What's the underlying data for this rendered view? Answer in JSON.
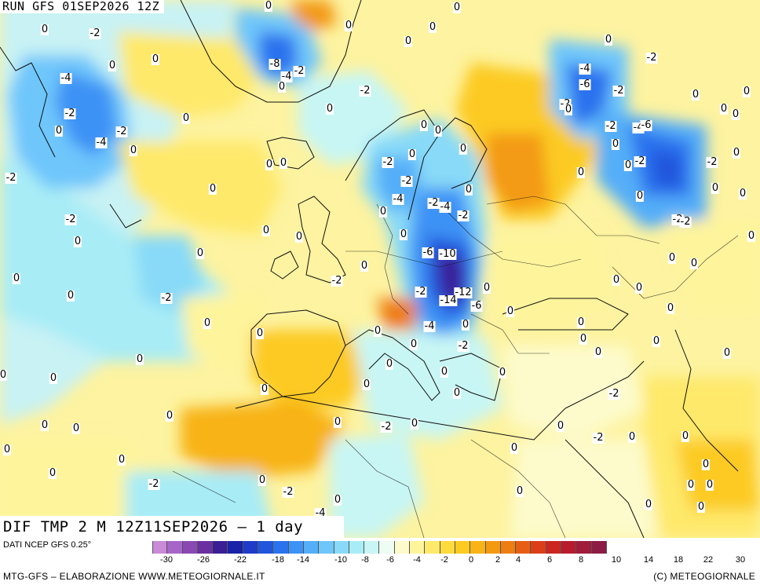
{
  "header": {
    "run": "RUN GFS 01SEP2026 12Z"
  },
  "title": "DIF TMP 2 M 12Z11SEP2026 – 1 day",
  "source": "DATI NCEP GFS 0.25°",
  "credit_left": "MTG-GFS – ELABORAZIONE WWW.METEOGIORNALE.IT",
  "credit_right": "(C) METEOGIORNALE",
  "legend": {
    "colors": [
      "#c98ad8",
      "#a865c8",
      "#8a48b4",
      "#6a2fa0",
      "#3a1e96",
      "#1a22a8",
      "#1e3cc8",
      "#2055dc",
      "#2a72ee",
      "#3c92f5",
      "#55aef8",
      "#6ec6fb",
      "#88daf8",
      "#a8ecf6",
      "#c8f6f4",
      "#eefcf4",
      "#fdfbcc",
      "#fef49c",
      "#fee96a",
      "#fedb3c",
      "#fcca20",
      "#f8b316",
      "#f39a12",
      "#ee7e12",
      "#e65e14",
      "#dc3e18",
      "#cc2620",
      "#b81c2c",
      "#a01c3a",
      "#8c1c44"
    ],
    "ticks": [
      "-30",
      "-26",
      "-22",
      "-18",
      "-14",
      "-10",
      "-8",
      "-6",
      "-4",
      "-2",
      "0",
      "2",
      "4",
      "6",
      "8",
      "10",
      "14",
      "18",
      "22",
      "30"
    ]
  },
  "map_labels": [
    [
      "0",
      57,
      38
    ],
    [
      "-2",
      121,
      43
    ],
    [
      "-4",
      84,
      100
    ],
    [
      "0",
      143,
      84
    ],
    [
      "0",
      198,
      76
    ],
    [
      "-2",
      89,
      145
    ],
    [
      "0",
      75,
      167
    ],
    [
      "-2",
      155,
      168
    ],
    [
      "-4",
      129,
      182
    ],
    [
      "0",
      170,
      192
    ],
    [
      "0",
      237,
      151
    ],
    [
      "0",
      342,
      8
    ],
    [
      "0",
      444,
      33
    ],
    [
      "-8",
      350,
      82
    ],
    [
      "-2",
      381,
      91
    ],
    [
      "-4",
      365,
      98
    ],
    [
      "0",
      359,
      111
    ],
    [
      "-2",
      465,
      116
    ],
    [
      "0",
      420,
      139
    ],
    [
      "0",
      520,
      53
    ],
    [
      "0",
      551,
      35
    ],
    [
      "-2",
      14,
      227
    ],
    [
      "0",
      271,
      241
    ],
    [
      "0",
      343,
      210
    ],
    [
      "0",
      361,
      208
    ],
    [
      "-2",
      90,
      280
    ],
    [
      "0",
      99,
      308
    ],
    [
      "0",
      339,
      294
    ],
    [
      "0",
      381,
      302
    ],
    [
      "0",
      255,
      323
    ],
    [
      "0",
      21,
      355
    ],
    [
      "0",
      90,
      377
    ],
    [
      "-2",
      212,
      380
    ],
    [
      "0",
      264,
      412
    ],
    [
      "-2",
      429,
      358
    ],
    [
      "0",
      464,
      339
    ],
    [
      "0",
      331,
      425
    ],
    [
      "0",
      178,
      458
    ],
    [
      "0",
      68,
      482
    ],
    [
      "0",
      337,
      496
    ],
    [
      "0",
      467,
      490
    ],
    [
      "0",
      4,
      478
    ],
    [
      "0",
      216,
      530
    ],
    [
      "0",
      57,
      542
    ],
    [
      "0",
      97,
      546
    ],
    [
      "0",
      430,
      538
    ],
    [
      "-2",
      492,
      544
    ],
    [
      "0",
      528,
      540
    ],
    [
      "0",
      9,
      573
    ],
    [
      "0",
      155,
      586
    ],
    [
      "0",
      67,
      603
    ],
    [
      "-2",
      196,
      617
    ],
    [
      "0",
      334,
      612
    ],
    [
      "-2",
      367,
      627
    ],
    [
      "0",
      430,
      637
    ],
    [
      "-4",
      408,
      654
    ],
    [
      "0",
      582,
      10
    ],
    [
      "0",
      775,
      51
    ],
    [
      "-2",
      830,
      74
    ],
    [
      "-4",
      745,
      88
    ],
    [
      "-6",
      745,
      108
    ],
    [
      "-2",
      788,
      116
    ],
    [
      "-2",
      720,
      133
    ],
    [
      "0",
      724,
      140
    ],
    [
      "0",
      886,
      121
    ],
    [
      "0",
      922,
      139
    ],
    [
      "-2",
      778,
      161
    ],
    [
      "-4",
      813,
      163
    ],
    [
      "-6",
      823,
      160
    ],
    [
      "0",
      937,
      146
    ],
    [
      "0",
      784,
      184
    ],
    [
      "-2",
      815,
      206
    ],
    [
      "-2",
      907,
      207
    ],
    [
      "0",
      938,
      195
    ],
    [
      "0",
      911,
      240
    ],
    [
      "0",
      946,
      247
    ],
    [
      "0",
      951,
      117
    ],
    [
      "0",
      957,
      301
    ],
    [
      "-2",
      863,
      280
    ],
    [
      "-2",
      873,
      283
    ],
    [
      "0",
      800,
      211
    ],
    [
      "0",
      740,
      220
    ],
    [
      "0",
      815,
      250
    ],
    [
      "-2",
      494,
      207
    ],
    [
      "0",
      525,
      197
    ],
    [
      "-2",
      518,
      231
    ],
    [
      "0",
      488,
      270
    ],
    [
      "-4",
      507,
      254
    ],
    [
      "-2",
      552,
      259
    ],
    [
      "-4",
      567,
      264
    ],
    [
      "-2",
      590,
      275
    ],
    [
      "0",
      597,
      242
    ],
    [
      "0",
      514,
      299
    ],
    [
      "0",
      540,
      160
    ],
    [
      "0",
      558,
      167
    ],
    [
      "0",
      590,
      190
    ],
    [
      "-6",
      545,
      322
    ],
    [
      "-10",
      570,
      324
    ],
    [
      "-2",
      536,
      372
    ],
    [
      "-12",
      590,
      373
    ],
    [
      "-14",
      571,
      383
    ],
    [
      "-6",
      607,
      390
    ],
    [
      "-4",
      547,
      416
    ],
    [
      "0",
      593,
      414
    ],
    [
      "0",
      527,
      439
    ],
    [
      "-2",
      590,
      441
    ],
    [
      "0",
      496,
      464
    ],
    [
      "0",
      566,
      474
    ],
    [
      "0",
      481,
      422
    ],
    [
      "0",
      650,
      397
    ],
    [
      "0",
      620,
      367
    ],
    [
      "0",
      856,
      329
    ],
    [
      "0",
      884,
      336
    ],
    [
      "0",
      785,
      357
    ],
    [
      "0",
      814,
      367
    ],
    [
      "0",
      854,
      393
    ],
    [
      "0",
      740,
      411
    ],
    [
      "0",
      743,
      432
    ],
    [
      "0",
      762,
      449
    ],
    [
      "0",
      836,
      435
    ],
    [
      "0",
      926,
      450
    ],
    [
      "0",
      640,
      475
    ],
    [
      "0",
      582,
      501
    ],
    [
      "-2",
      782,
      502
    ],
    [
      "0",
      714,
      543
    ],
    [
      "-2",
      762,
      558
    ],
    [
      "0",
      805,
      557
    ],
    [
      "0",
      873,
      556
    ],
    [
      "0",
      655,
      571
    ],
    [
      "0",
      899,
      592
    ],
    [
      "0",
      880,
      618
    ],
    [
      "0",
      904,
      618
    ],
    [
      "0",
      662,
      626
    ],
    [
      "0",
      826,
      643
    ],
    [
      "0",
      893,
      646
    ]
  ]
}
